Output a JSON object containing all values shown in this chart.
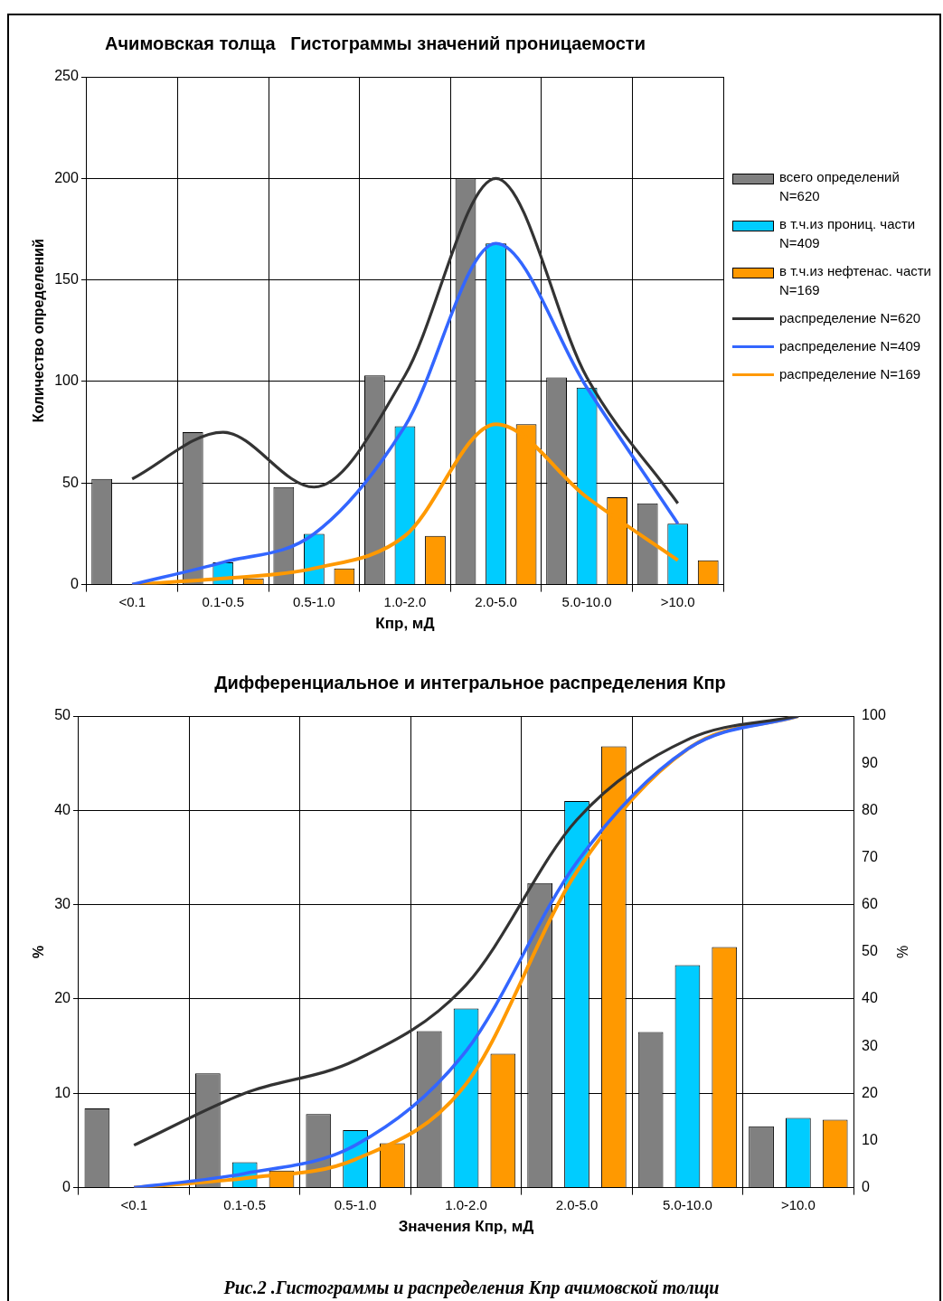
{
  "chart_data": [
    {
      "type": "bar",
      "title": "Ачимовская толща   Гистограммы значений проницаемости",
      "xlabel": "Кпр, мД",
      "ylabel": "Количество определений",
      "categories": [
        "<0.1",
        "0.1-0.5",
        "0.5-1.0",
        "1.0-2.0",
        "2.0-5.0",
        "5.0-10.0",
        ">10.0"
      ],
      "series": [
        {
          "name": "всего определений N=620",
          "color": "#808080",
          "values": [
            52,
            75,
            48,
            103,
            200,
            102,
            40
          ]
        },
        {
          "name": "в т.ч.из прониц. части N=409",
          "color": "#00ccff",
          "values": [
            0,
            11,
            25,
            78,
            168,
            97,
            30
          ]
        },
        {
          "name": "в т.ч.из нефтенас. части N=169",
          "color": "#ff9900",
          "values": [
            0,
            3,
            8,
            24,
            79,
            43,
            12
          ]
        },
        {
          "type": "line",
          "name": "распределение N=620",
          "color": "#333333",
          "values": [
            52,
            75,
            48,
            103,
            200,
            102,
            40
          ]
        },
        {
          "type": "line",
          "name": "распределение N=409",
          "color": "#3366ff",
          "values": [
            0,
            11,
            25,
            78,
            168,
            97,
            30
          ]
        },
        {
          "type": "line",
          "name": "распределение N=169",
          "color": "#ff9900",
          "values": [
            0,
            3,
            8,
            24,
            79,
            43,
            12
          ]
        }
      ],
      "ylim": [
        0,
        250
      ],
      "yticks": [
        0,
        50,
        100,
        150,
        200,
        250
      ],
      "grid": true,
      "legend": "right",
      "marker": "none"
    },
    {
      "type": "bar",
      "title": "Дифференциальное и интегральное распределения Кпр",
      "xlabel": "Значения Кпр, мД",
      "ylabel": "%",
      "y2label": "%",
      "categories": [
        "<0.1",
        "0.1-0.5",
        "0.5-1.0",
        "1.0-2.0",
        "2.0-5.0",
        "5.0-10.0",
        ">10.0"
      ],
      "series": [
        {
          "color": "#808080",
          "values": [
            8.4,
            12.1,
            7.8,
            16.6,
            32.3,
            16.5,
            6.5
          ]
        },
        {
          "color": "#00ccff",
          "values": [
            0,
            2.7,
            6.1,
            19,
            41,
            23.6,
            7.4
          ]
        },
        {
          "color": "#ff9900",
          "values": [
            0,
            1.8,
            4.7,
            14.2,
            46.8,
            25.5,
            7.2
          ]
        },
        {
          "type": "line",
          "axis": "y2",
          "color": "#333333",
          "values": [
            9,
            20,
            27,
            43,
            78,
            95,
            100
          ]
        },
        {
          "type": "line",
          "axis": "y2",
          "color": "#3366ff",
          "values": [
            0,
            3,
            9,
            29,
            69,
            93,
            100
          ]
        },
        {
          "type": "line",
          "axis": "y2",
          "color": "#ff9900",
          "values": [
            0,
            2,
            6,
            22,
            67,
            93,
            100
          ]
        }
      ],
      "ylim": [
        0,
        50
      ],
      "yticks": [
        0,
        10,
        20,
        30,
        40,
        50
      ],
      "y2lim": [
        0,
        100
      ],
      "y2ticks": [
        0,
        10,
        20,
        30,
        40,
        50,
        60,
        70,
        80,
        90,
        100
      ],
      "grid": true,
      "marker": "none",
      "annotations": [
        "Рис.2 .Гистограммы и распределения Кпр ачимовской толщи"
      ]
    }
  ]
}
